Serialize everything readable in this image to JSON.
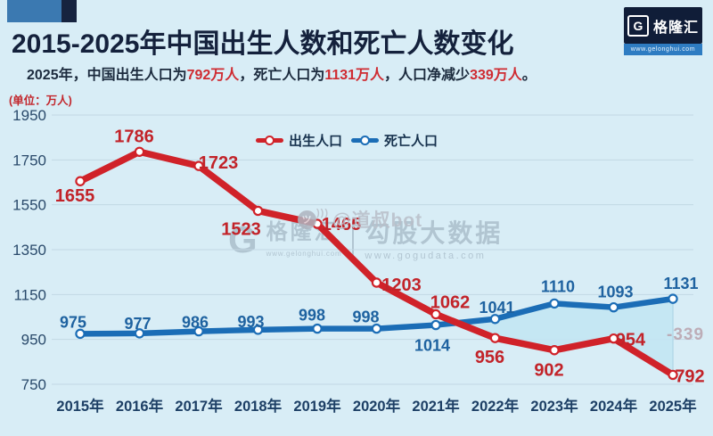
{
  "page": {
    "background": "#d8edf6"
  },
  "header": {
    "title": "2015-2025年中国出生人数和死亡人数变化",
    "subtitle_parts": [
      {
        "text": "2025年，中国出生人口为",
        "highlight": false
      },
      {
        "text": "792万人",
        "highlight": true
      },
      {
        "text": "，死亡人口为",
        "highlight": false
      },
      {
        "text": "1131万人",
        "highlight": true
      },
      {
        "text": "，人口净减少",
        "highlight": false
      },
      {
        "text": "339万人",
        "highlight": true
      },
      {
        "text": "。",
        "highlight": false
      }
    ],
    "logo": {
      "gmark": "G",
      "brand": "格隆汇",
      "url": "www.gelonghui.com"
    }
  },
  "chart_data": {
    "type": "line",
    "title": "2015-2025年中国出生人数和死亡人数变化",
    "unit_label": "(单位：万人)",
    "categories": [
      "2015年",
      "2016年",
      "2017年",
      "2018年",
      "2019年",
      "2020年",
      "2021年",
      "2022年",
      "2023年",
      "2024年",
      "2025年"
    ],
    "series": [
      {
        "name": "出生人口",
        "color": "#d02229",
        "label_color": "#c22329",
        "values": [
          1655,
          1786,
          1723,
          1523,
          1465,
          1203,
          1062,
          956,
          902,
          954,
          792
        ],
        "label_offsets": [
          [
            -6,
            16
          ],
          [
            -6,
            -18
          ],
          [
            22,
            -4
          ],
          [
            -19,
            20
          ],
          [
            27,
            0
          ],
          [
            28,
            2
          ],
          [
            16,
            -14
          ],
          [
            -6,
            21
          ],
          [
            -6,
            22
          ],
          [
            19,
            1
          ],
          [
            19,
            1
          ]
        ]
      },
      {
        "name": "死亡人口",
        "color": "#1b6db6",
        "label_color": "#1e62a0",
        "values": [
          975,
          977,
          986,
          993,
          998,
          998,
          1014,
          1041,
          1110,
          1093,
          1131
        ],
        "label_offsets": [
          [
            -8,
            -13
          ],
          [
            -2,
            -11
          ],
          [
            -4,
            -10
          ],
          [
            -8,
            -9
          ],
          [
            -6,
            -15
          ],
          [
            -12,
            -13
          ],
          [
            -4,
            23
          ],
          [
            2,
            -13
          ],
          [
            4,
            -19
          ],
          [
            2,
            -17
          ],
          [
            9,
            -17
          ]
        ]
      }
    ],
    "yticks": [
      1950,
      1750,
      1550,
      1350,
      1150,
      950,
      750
    ],
    "ylim": [
      750,
      1950
    ],
    "grid": true,
    "legend_position": "top-center",
    "fill_between": {
      "upper": "死亡人口",
      "lower": "出生人口",
      "color": "#c3e5f3",
      "note": "shaded where deaths exceed births, 2022-2025"
    },
    "annotation": {
      "text": "-339",
      "color": "#b9a2ad",
      "meaning": "net population change 2025 (792-1131)"
    }
  },
  "watermarks": {
    "weibo": {
      "text": "@道叔bot",
      "icon": "panda-weibo-icon"
    },
    "brand": {
      "gmark": "G",
      "name": "格隆汇",
      "url1": "www.gelonghui.com",
      "partner": "勾股大数据",
      "url2": "www.gogudata.com"
    }
  },
  "style": {
    "axis_text_color": "#2a4a6b",
    "xlabel_color": "#1d3f65",
    "grid_color": "#c2d8e4",
    "legend_text_color": "#16314d"
  }
}
